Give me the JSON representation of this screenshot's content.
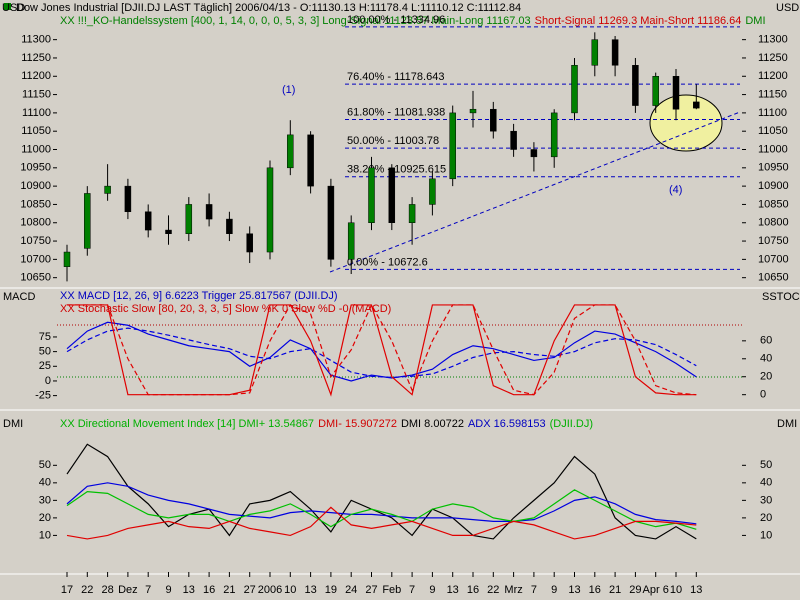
{
  "chart_data": [
    {
      "type": "candlestick",
      "title": "Dow Jones Industrial [DJII.DJ LAST Täglich] 2006/04/13 - O:11130.13 H:11178.4 L:11110.12 C:11112.84",
      "legend_parts": [
        {
          "text": "XX !!!_KO-Handelssystem [400, 1, 14, 0, 0, 0, 5, 3, 3] Long-Signal 11123.57 Main-Long 11167.03",
          "color": "#008000"
        },
        {
          "text": "Short-Signal 11269.3 Main-Short 11186.64",
          "color": "#d00000"
        },
        {
          "text": "DMI",
          "color": "#008000"
        }
      ],
      "y_label_left": "USD",
      "y_label_right": "USD",
      "categories": [
        "17",
        "22",
        "28",
        "Dez",
        "7",
        "9",
        "13",
        "16",
        "21",
        "27",
        "2006",
        "10",
        "13",
        "19",
        "24",
        "27",
        "Feb",
        "7",
        "9",
        "13",
        "16",
        "22",
        "Mrz",
        "7",
        "9",
        "13",
        "16",
        "21",
        "29",
        "Apr 6",
        "10",
        "13"
      ],
      "open": [
        10680,
        10730,
        10880,
        10900,
        10830,
        10780,
        10770,
        10850,
        10810,
        10770,
        10720,
        10950,
        11040,
        10900,
        10700,
        10800,
        10950,
        10800,
        10850,
        10920,
        11100,
        11110,
        11050,
        11000,
        10980,
        11100,
        11230,
        11300,
        11230,
        11120,
        11200,
        11130
      ],
      "high": [
        10740,
        10900,
        10960,
        10920,
        10850,
        10820,
        10870,
        10880,
        10830,
        10790,
        10970,
        11080,
        11050,
        10920,
        10820,
        10980,
        10960,
        10870,
        10940,
        11120,
        11160,
        11130,
        11070,
        11020,
        11110,
        11250,
        11320,
        11310,
        11250,
        11210,
        11220,
        11178
      ],
      "low": [
        10640,
        10710,
        10860,
        10810,
        10760,
        10740,
        10750,
        10790,
        10750,
        10690,
        10700,
        10930,
        10880,
        10680,
        10660,
        10780,
        10780,
        10740,
        10820,
        10900,
        11060,
        11030,
        10980,
        10940,
        10950,
        11080,
        11200,
        11200,
        11100,
        11100,
        11080,
        11110
      ],
      "close": [
        10720,
        10880,
        10900,
        10830,
        10780,
        10770,
        10850,
        10810,
        10770,
        10720,
        10950,
        11040,
        10900,
        10700,
        10800,
        10950,
        10800,
        10850,
        10920,
        11100,
        11110,
        11050,
        11000,
        10980,
        11100,
        11230,
        11300,
        11230,
        11120,
        11200,
        11110,
        11113
      ],
      "up_color": "#008000",
      "down_color": "#000000",
      "ylim": [
        10630,
        11340
      ],
      "yticks": [
        11300,
        11250,
        11200,
        11150,
        11100,
        11050,
        11000,
        10950,
        10900,
        10850,
        10800,
        10750,
        10700,
        10650
      ],
      "fib_levels": [
        {
          "value": 11334.96,
          "label": "100.00% - 11334.96"
        },
        {
          "value": 11178.643,
          "label": "76.40% - 11178.643"
        },
        {
          "value": 11081.938,
          "label": "61.80% - 11081.938"
        },
        {
          "value": 11003.78,
          "label": "50.00% - 11003.78"
        },
        {
          "value": 10925.615,
          "label": "38.20% - 10925.615"
        },
        {
          "value": 10672.6,
          "label": "0.00% - 10672.6"
        }
      ],
      "fib_color": "#0000c0",
      "annotations": [
        "(1)",
        "(4)"
      ]
    },
    {
      "type": "line",
      "y_label_left": "MACD",
      "y_label_right": "SSTOC",
      "legend_parts": [
        {
          "text": "XX MACD [12, 26, 9] 6.6223 Trigger 25.817567 (DJII.DJ)",
          "color": "#0000c0"
        },
        {
          "text": "XX Stochastic Slow [80, 20, 3, 3, 5] Slow %K 0 Slow %D -0 (MACD)",
          "color": "#d00000"
        }
      ],
      "ylim": [
        -41,
        138
      ],
      "yticks": [
        75,
        50,
        25,
        0,
        -25
      ],
      "y2lim": [
        -11.5,
        105.5
      ],
      "y2ticks": [
        60,
        40,
        20,
        0
      ],
      "series": [
        {
          "color": "#0000e0",
          "dash": false,
          "values": [
            55,
            85,
            100,
            95,
            80,
            70,
            60,
            55,
            50,
            25,
            40,
            70,
            55,
            10,
            0,
            10,
            5,
            10,
            20,
            45,
            60,
            55,
            45,
            35,
            40,
            65,
            85,
            80,
            65,
            50,
            30,
            7
          ]
        },
        {
          "color": "#0000e0",
          "dash": true,
          "values": [
            50,
            70,
            85,
            90,
            85,
            78,
            70,
            62,
            55,
            42,
            38,
            50,
            55,
            35,
            15,
            8,
            6,
            8,
            12,
            25,
            40,
            48,
            50,
            45,
            42,
            50,
            65,
            72,
            70,
            62,
            45,
            26
          ]
        },
        {
          "color": "#e00000",
          "dash": false,
          "axis": "y2",
          "values": [
            100,
            100,
            100,
            0,
            0,
            0,
            0,
            0,
            0,
            5,
            100,
            100,
            60,
            0,
            100,
            100,
            20,
            0,
            100,
            100,
            100,
            10,
            0,
            0,
            60,
            100,
            100,
            100,
            20,
            2,
            0,
            0
          ]
        },
        {
          "color": "#e00000",
          "dash": true,
          "axis": "y2",
          "values": [
            100,
            100,
            100,
            40,
            0,
            0,
            0,
            0,
            0,
            2,
            60,
            100,
            90,
            20,
            50,
            100,
            60,
            5,
            60,
            100,
            100,
            50,
            5,
            0,
            25,
            85,
            100,
            100,
            60,
            10,
            2,
            0
          ]
        }
      ]
    },
    {
      "type": "line",
      "y_label_left": "DMI",
      "y_label_right": "DMI",
      "legend_parts": [
        {
          "text": "XX Directional Movement Index [14] DMI+ 13.54867",
          "color": "#00b000"
        },
        {
          "text": "DMI- 15.907272",
          "color": "#d00000"
        },
        {
          "text": "DMI 8.00722",
          "color": "#000000"
        },
        {
          "text": "ADX 16.598153",
          "color": "#0000c0"
        },
        {
          "text": "(DJII.DJ)",
          "color": "#00b000"
        }
      ],
      "ylim": [
        -8.6,
        77
      ],
      "yticks": [
        50,
        40,
        30,
        20,
        10
      ],
      "y2lim": [
        -8.6,
        77
      ],
      "y2ticks": [
        50,
        40,
        30,
        20,
        10
      ],
      "series": [
        {
          "color": "#000000",
          "values": [
            45,
            62,
            55,
            38,
            28,
            15,
            22,
            25,
            10,
            28,
            30,
            35,
            25,
            12,
            30,
            25,
            20,
            10,
            25,
            20,
            10,
            8,
            20,
            30,
            40,
            55,
            45,
            20,
            10,
            8,
            15,
            8
          ]
        },
        {
          "color": "#0000e0",
          "values": [
            28,
            38,
            40,
            38,
            33,
            30,
            28,
            25,
            22,
            21,
            20,
            23,
            24,
            23,
            22,
            22,
            21,
            20,
            20,
            20,
            19,
            18,
            18,
            19,
            24,
            30,
            32,
            28,
            22,
            19,
            18,
            16.6
          ]
        },
        {
          "color": "#00c000",
          "values": [
            27,
            35,
            34,
            28,
            22,
            20,
            22,
            22,
            18,
            22,
            24,
            28,
            22,
            15,
            22,
            25,
            22,
            18,
            25,
            28,
            26,
            20,
            18,
            20,
            28,
            36,
            30,
            24,
            18,
            15,
            17,
            13.5
          ]
        },
        {
          "color": "#e00000",
          "values": [
            10,
            8,
            10,
            14,
            16,
            18,
            15,
            14,
            18,
            14,
            12,
            10,
            15,
            26,
            16,
            14,
            16,
            18,
            14,
            10,
            10,
            14,
            18,
            16,
            12,
            8,
            10,
            14,
            18,
            18,
            17,
            15.9
          ]
        }
      ]
    }
  ]
}
